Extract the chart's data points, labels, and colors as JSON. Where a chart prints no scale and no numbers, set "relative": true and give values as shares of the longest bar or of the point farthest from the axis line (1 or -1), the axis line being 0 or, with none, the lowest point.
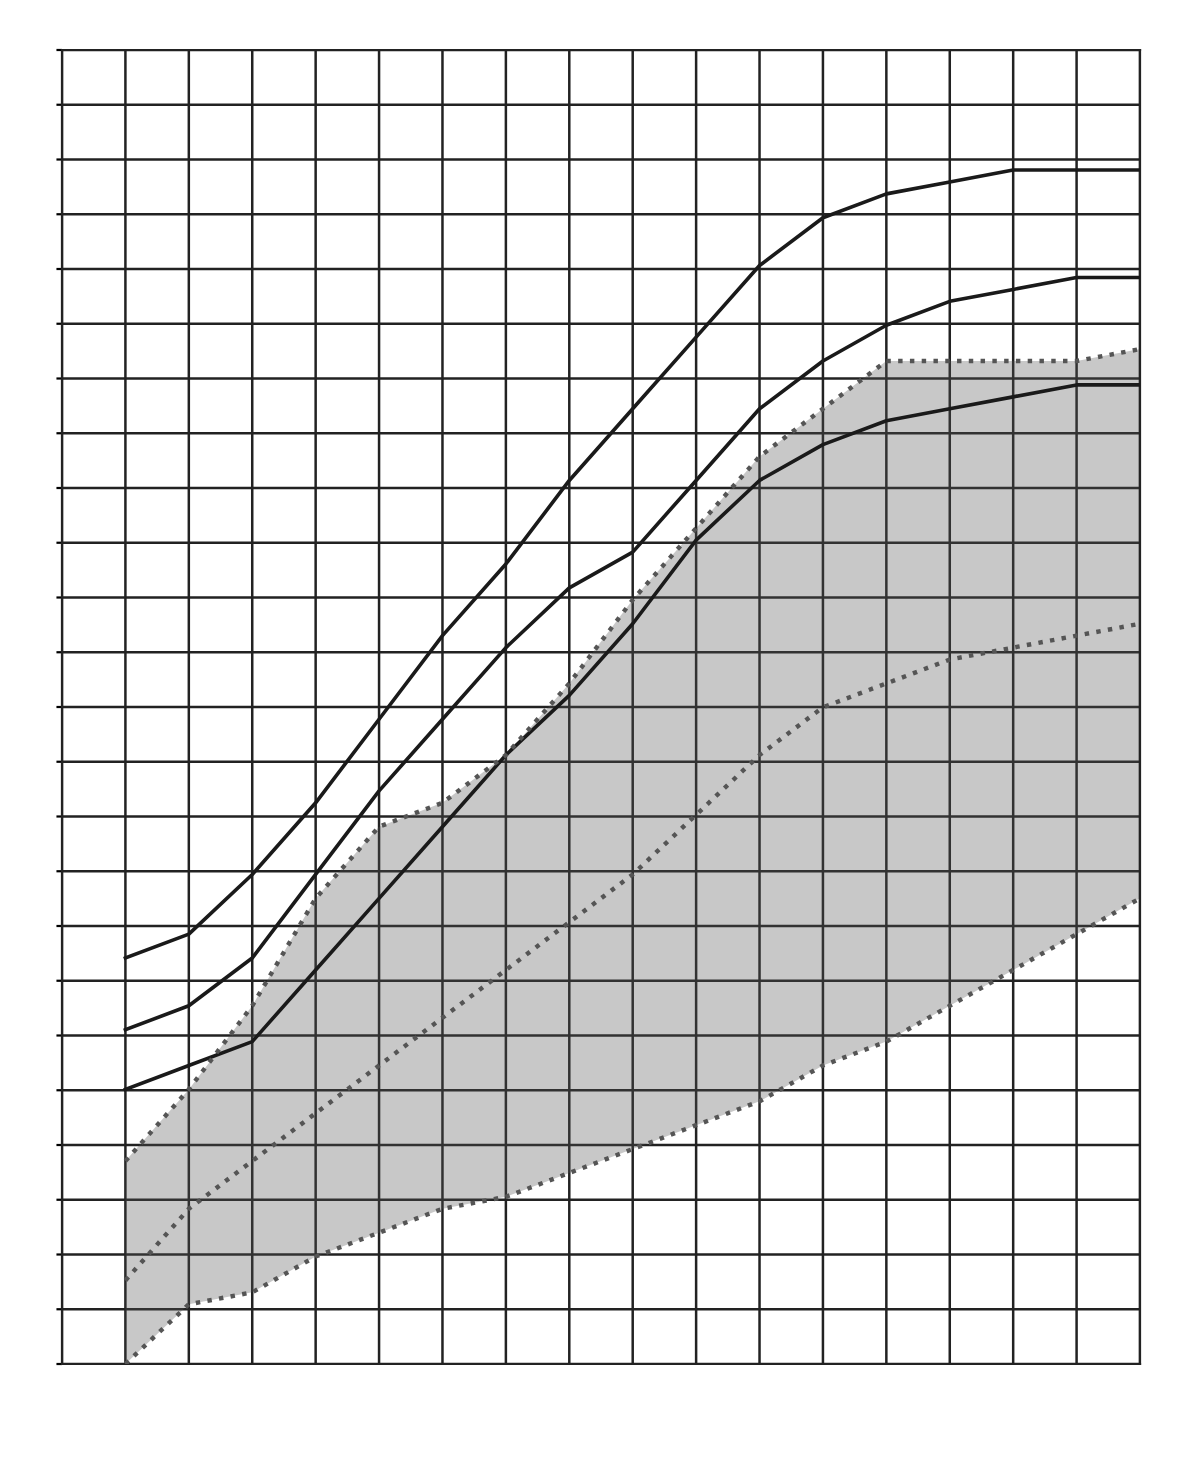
{
  "chart_data": {
    "type": "line",
    "relative": true,
    "grid": true,
    "marker": "none",
    "categories": [
      null,
      null,
      null,
      null,
      null,
      null,
      null,
      null,
      null,
      null,
      null,
      null,
      null,
      null,
      null,
      null,
      null
    ],
    "series": [
      {
        "color": "#1a1a1a",
        "line_style": "solid",
        "values": [
          0.34,
          0.36,
          0.41,
          0.47,
          0.54,
          0.61,
          0.67,
          0.74,
          0.8,
          0.86,
          0.92,
          0.96,
          0.98,
          0.99,
          1.0,
          1.0,
          1.0
        ]
      },
      {
        "color": "#1a1a1a",
        "line_style": "solid",
        "values": [
          0.28,
          0.3,
          0.34,
          0.41,
          0.48,
          0.54,
          0.6,
          0.65,
          0.68,
          0.74,
          0.8,
          0.84,
          0.87,
          0.89,
          0.9,
          0.91,
          0.91
        ]
      },
      {
        "color": "#1a1a1a",
        "line_style": "solid",
        "values": [
          0.23,
          0.25,
          0.27,
          0.33,
          0.39,
          0.45,
          0.51,
          0.56,
          0.62,
          0.69,
          0.74,
          0.77,
          0.79,
          0.8,
          0.81,
          0.82,
          0.82
        ]
      },
      {
        "color": "#555555",
        "line_style": "dotted",
        "values": [
          0.07,
          0.13,
          0.17,
          0.21,
          0.25,
          0.29,
          0.33,
          0.37,
          0.41,
          0.46,
          0.51,
          0.55,
          0.57,
          0.59,
          0.6,
          0.61,
          0.62
        ],
        "lower": [
          0.0,
          0.05,
          0.06,
          0.09,
          0.11,
          0.13,
          0.14,
          0.16,
          0.18,
          0.2,
          0.22,
          0.25,
          0.27,
          0.3,
          0.33,
          0.36,
          0.39
        ],
        "upper": [
          0.17,
          0.23,
          0.3,
          0.39,
          0.45,
          0.47,
          0.51,
          0.57,
          0.64,
          0.7,
          0.76,
          0.8,
          0.84,
          0.84,
          0.84,
          0.84,
          0.85
        ]
      },
      {
        "color": "#555555",
        "line_style": "dotted",
        "values": [
          0.0,
          0.05,
          0.06,
          0.09,
          0.11,
          0.13,
          0.14,
          0.16,
          0.18,
          0.2,
          0.22,
          0.25,
          0.27,
          0.3,
          0.33,
          0.36,
          0.39
        ]
      },
      {
        "color": "#555555",
        "line_style": "dotted",
        "values": [
          0.17,
          0.23,
          0.3,
          0.39,
          0.45,
          0.47,
          0.51,
          0.57,
          0.64,
          0.7,
          0.76,
          0.8,
          0.84,
          0.84,
          0.84,
          0.84,
          0.85
        ]
      }
    ]
  }
}
